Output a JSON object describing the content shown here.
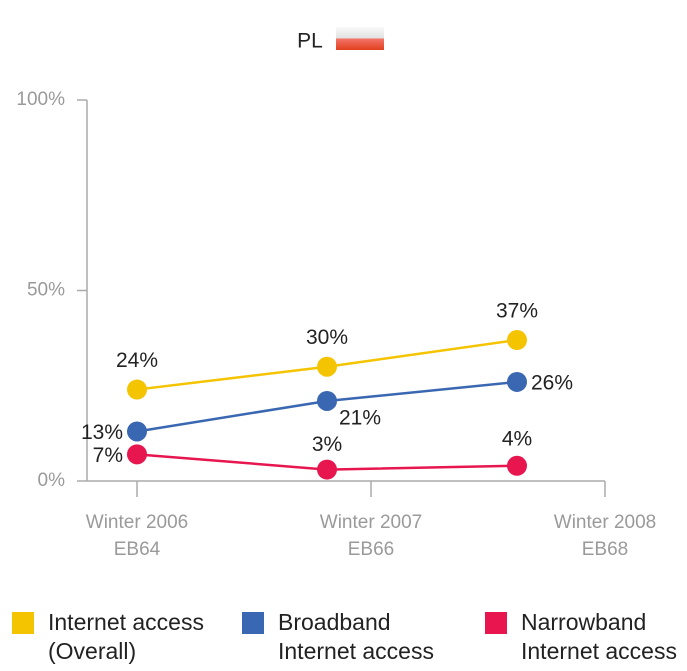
{
  "chart_data": {
    "type": "line",
    "title": "PL",
    "categories": [
      [
        "Winter 2006",
        "EB64"
      ],
      [
        "Winter 2007",
        "EB66"
      ],
      [
        "Winter 2008",
        "EB68"
      ]
    ],
    "series": [
      {
        "name": "Internet access (Overall)",
        "color": "#f5c400",
        "values": [
          24,
          30,
          37
        ],
        "value_labels": [
          "24%",
          "30%",
          "37%"
        ]
      },
      {
        "name": "Broadband Internet access",
        "color": "#3a67b1",
        "values": [
          13,
          21,
          26
        ],
        "value_labels": [
          "13%",
          "21%",
          "26%"
        ]
      },
      {
        "name": "Narrowband Internet access",
        "color": "#e8164f",
        "values": [
          7,
          3,
          4
        ],
        "value_labels": [
          "7%",
          "3%",
          "4%"
        ]
      }
    ],
    "ylim": [
      0,
      100
    ],
    "yticks": [
      {
        "value": 0,
        "label": "0%"
      },
      {
        "value": 50,
        "label": "50%"
      },
      {
        "value": 100,
        "label": "100%"
      }
    ],
    "legend": "bottom"
  }
}
